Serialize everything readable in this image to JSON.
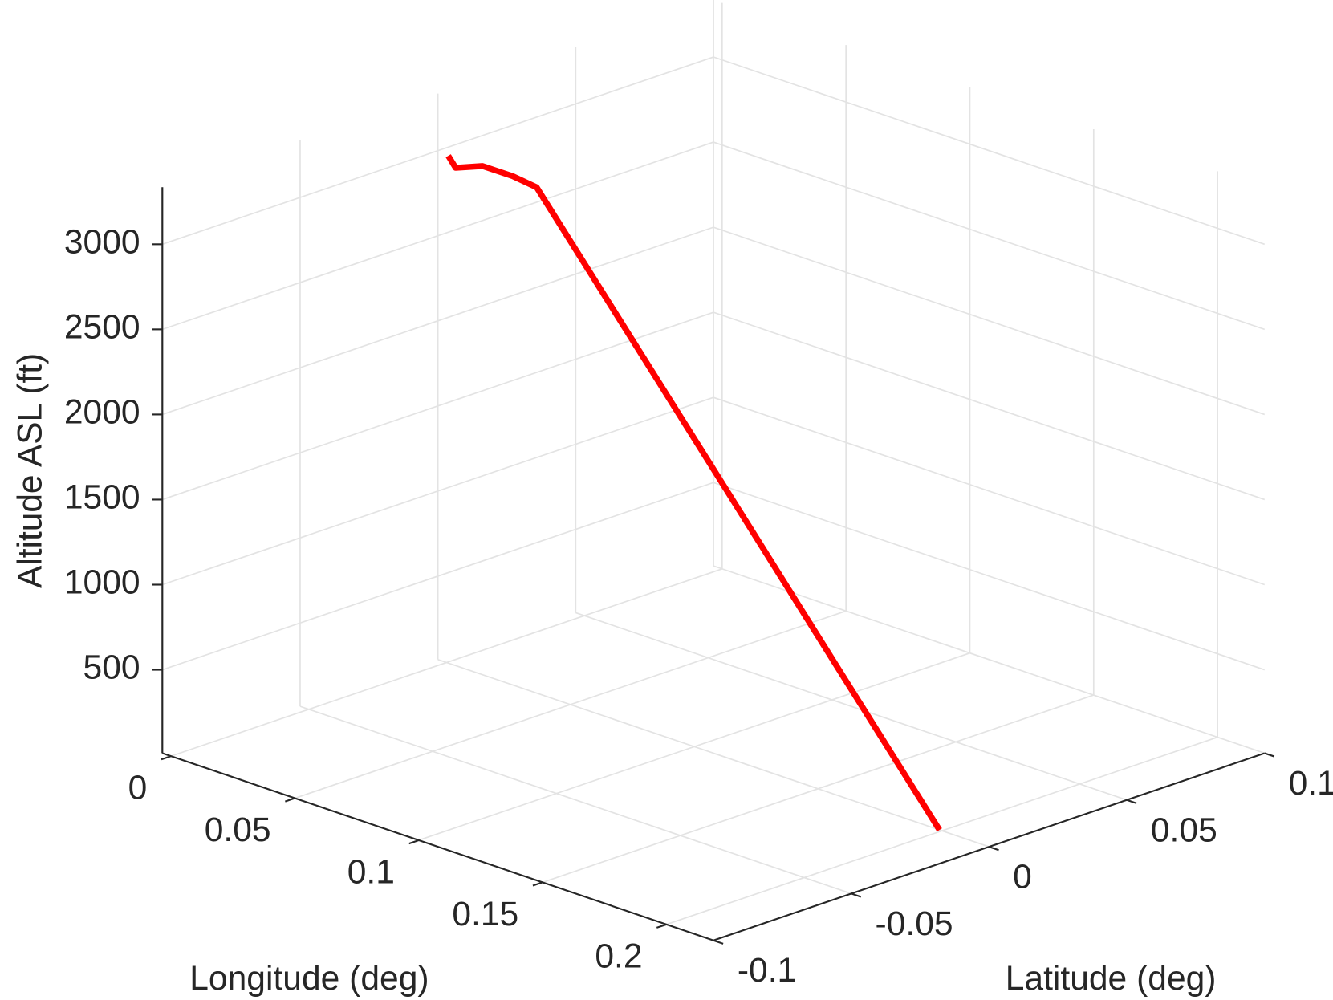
{
  "chart_data": {
    "type": "line3d",
    "xlabel": "Longitude (deg)",
    "ylabel": "Latitude (deg)",
    "zlabel": "Altitude ASL (ft)",
    "x": [
      0.0355,
      0.0406,
      0.045,
      0.055,
      0.0635,
      0.0974,
      0.1313,
      0.1651,
      0.199
    ],
    "y": [
      -0.0313,
      -0.0332,
      -0.0274,
      -0.0255,
      -0.0244,
      -0.0183,
      -0.0122,
      -0.0061,
      0
    ],
    "z": [
      3335,
      3300,
      3300,
      3280,
      3250,
      2440,
      1630,
      820,
      10
    ],
    "color": "#ff0000",
    "xlim": [
      -0.0035,
      0.219
    ],
    "ylim": [
      -0.1,
      0.1
    ],
    "zlim": [
      10,
      3335
    ],
    "xticks": [
      0,
      0.05,
      0.1,
      0.15,
      0.2
    ],
    "yticks": [
      -0.1,
      -0.05,
      0,
      0.05,
      0.1
    ],
    "zticks": [
      500,
      1000,
      1500,
      2000,
      2500,
      3000
    ],
    "grid": true
  }
}
